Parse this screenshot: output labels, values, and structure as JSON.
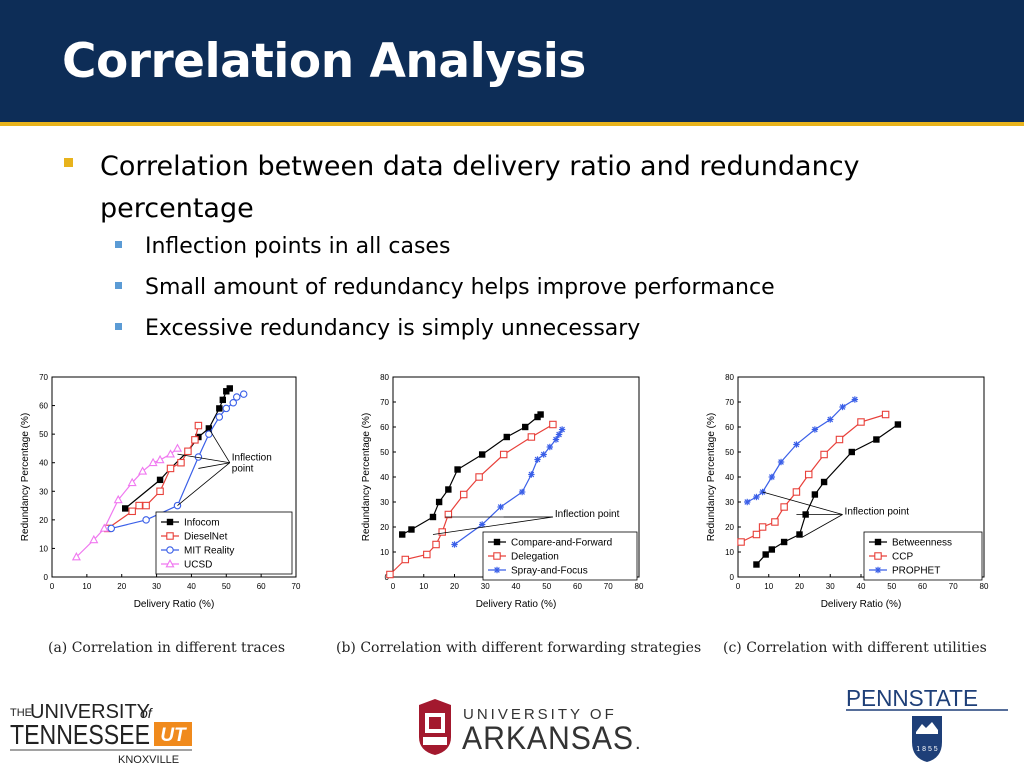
{
  "title": "Correlation Analysis",
  "bullets": {
    "main": "Correlation between data delivery ratio and redundancy percentage",
    "sub": [
      "Inflection points in all cases",
      "Small amount of redundancy helps improve performance",
      "Excessive redundancy is simply unnecessary"
    ]
  },
  "colors": {
    "title_bg": "#0d2d57",
    "accent": "#e8b31c",
    "sub_bullet": "#5b9bd5",
    "black": "#000000",
    "red": "#e8403a",
    "blue": "#3a5fe8",
    "pink": "#f078f0"
  },
  "chart_data": [
    {
      "type": "line",
      "caption": "(a)  Correlation  in  different  traces",
      "xlabel": "Delivery Ratio (%)",
      "ylabel": "Redundancy Percentage (%)",
      "xlim": [
        0,
        70
      ],
      "ylim": [
        0,
        70
      ],
      "xticks": [
        0,
        10,
        20,
        30,
        40,
        50,
        60,
        70
      ],
      "yticks": [
        0,
        10,
        20,
        30,
        40,
        50,
        60,
        70
      ],
      "legend_position": "bottom-right",
      "annotation": {
        "text": [
          "Inflection",
          "point"
        ],
        "pos": [
          51,
          40
        ],
        "targets": [
          [
            45,
            52
          ],
          [
            42,
            38
          ],
          [
            36,
            25
          ],
          [
            36,
            43
          ]
        ]
      },
      "series": [
        {
          "name": "Infocom",
          "color": "#000000",
          "marker": "square-filled",
          "x": [
            21,
            31,
            34,
            39,
            42,
            45,
            48,
            49,
            50,
            51
          ],
          "y": [
            24,
            34,
            38,
            44,
            49,
            52,
            59,
            62,
            65,
            66
          ]
        },
        {
          "name": "DieselNet",
          "color": "#e8403a",
          "marker": "square-open",
          "x": [
            16,
            23,
            25,
            27,
            31,
            34,
            37,
            39,
            41,
            42
          ],
          "y": [
            17,
            23,
            25,
            25,
            30,
            38,
            40,
            44,
            48,
            53
          ]
        },
        {
          "name": "MIT Reality",
          "color": "#3a5fe8",
          "marker": "circle-open",
          "x": [
            17,
            27,
            36,
            42,
            45,
            48,
            50,
            52,
            53,
            55
          ],
          "y": [
            17,
            20,
            25,
            42,
            50,
            56,
            59,
            61,
            63,
            64
          ]
        },
        {
          "name": "UCSD",
          "color": "#f078f0",
          "marker": "triangle-open",
          "x": [
            7,
            12,
            15,
            19,
            23,
            26,
            29,
            31,
            34,
            36
          ],
          "y": [
            7,
            13,
            17,
            27,
            33,
            37,
            40,
            41,
            43,
            45
          ]
        }
      ]
    },
    {
      "type": "line",
      "caption": "(b)  Correlation with different forwarding strategies",
      "xlabel": "Delivery Ratio (%)",
      "ylabel": "Redundancy Percentage (%)",
      "xlim": [
        0,
        80
      ],
      "ylim": [
        0,
        80
      ],
      "xticks": [
        0,
        10,
        20,
        30,
        40,
        50,
        60,
        70,
        80
      ],
      "yticks": [
        0,
        10,
        20,
        30,
        40,
        50,
        60,
        70,
        80
      ],
      "legend_position": "bottom-right",
      "annotation": {
        "text": [
          "Inflection point"
        ],
        "pos": [
          52,
          24
        ],
        "targets": [
          [
            17,
            24
          ],
          [
            13,
            17
          ],
          [
            36,
            24
          ]
        ]
      },
      "series": [
        {
          "name": "Compare-and-Forward",
          "color": "#000000",
          "marker": "square-filled",
          "x": [
            3,
            6,
            13,
            15,
            18,
            21,
            29,
            37,
            43,
            47,
            48
          ],
          "y": [
            17,
            19,
            24,
            30,
            35,
            43,
            49,
            56,
            60,
            64,
            65
          ]
        },
        {
          "name": "Delegation",
          "color": "#e8403a",
          "marker": "square-open",
          "x": [
            -1,
            4,
            11,
            14,
            16,
            18,
            23,
            28,
            36,
            45,
            52
          ],
          "y": [
            1,
            7,
            9,
            13,
            18,
            25,
            33,
            40,
            49,
            56,
            61
          ]
        },
        {
          "name": "Spray-and-Focus",
          "color": "#3a5fe8",
          "marker": "star",
          "x": [
            20,
            29,
            35,
            42,
            45,
            47,
            49,
            51,
            53,
            54,
            55
          ],
          "y": [
            13,
            21,
            28,
            34,
            41,
            47,
            49,
            52,
            55,
            57,
            59
          ]
        }
      ]
    },
    {
      "type": "line",
      "caption": "(c)  Correlation  with  different  utilities",
      "xlabel": "Delivery Ratio (%)",
      "ylabel": "Redundancy Percentage (%)",
      "xlim": [
        0,
        80
      ],
      "ylim": [
        0,
        80
      ],
      "xticks": [
        0,
        10,
        20,
        30,
        40,
        50,
        60,
        70,
        80
      ],
      "yticks": [
        0,
        10,
        20,
        30,
        40,
        50,
        60,
        70,
        80
      ],
      "legend_position": "bottom-right",
      "annotation": {
        "text": [
          "Inflection point"
        ],
        "pos": [
          34,
          25
        ],
        "targets": [
          [
            8,
            34
          ],
          [
            19,
            25
          ],
          [
            21,
            16
          ]
        ]
      },
      "series": [
        {
          "name": "Betweenness",
          "color": "#000000",
          "marker": "square-filled",
          "x": [
            6,
            9,
            11,
            15,
            20,
            22,
            25,
            28,
            37,
            45,
            52
          ],
          "y": [
            5,
            9,
            11,
            14,
            17,
            25,
            33,
            38,
            50,
            55,
            61
          ]
        },
        {
          "name": "CCP",
          "color": "#e8403a",
          "marker": "square-open",
          "x": [
            1,
            6,
            8,
            12,
            15,
            19,
            23,
            28,
            33,
            40,
            48
          ],
          "y": [
            14,
            17,
            20,
            22,
            28,
            34,
            41,
            49,
            55,
            62,
            65
          ]
        },
        {
          "name": "PROPHET",
          "color": "#3a5fe8",
          "marker": "star",
          "x": [
            3,
            6,
            8,
            11,
            14,
            19,
            25,
            30,
            34,
            38
          ],
          "y": [
            30,
            32,
            34,
            40,
            46,
            53,
            59,
            63,
            68,
            71
          ]
        }
      ]
    }
  ],
  "logos": {
    "tennessee": {
      "line1_prefix": "THE",
      "line1": "UNIVERSITY",
      "line1_suffix": "of",
      "line2": "TENNESSEE",
      "mark": "UT",
      "line3": "KNOXVILLE"
    },
    "arkansas": {
      "line1": "UNIVERSITY OF",
      "line2": "ARKANSAS",
      "mark": "."
    },
    "pennstate": {
      "name": "PENNSTATE",
      "year": "1 8 5 5"
    }
  }
}
